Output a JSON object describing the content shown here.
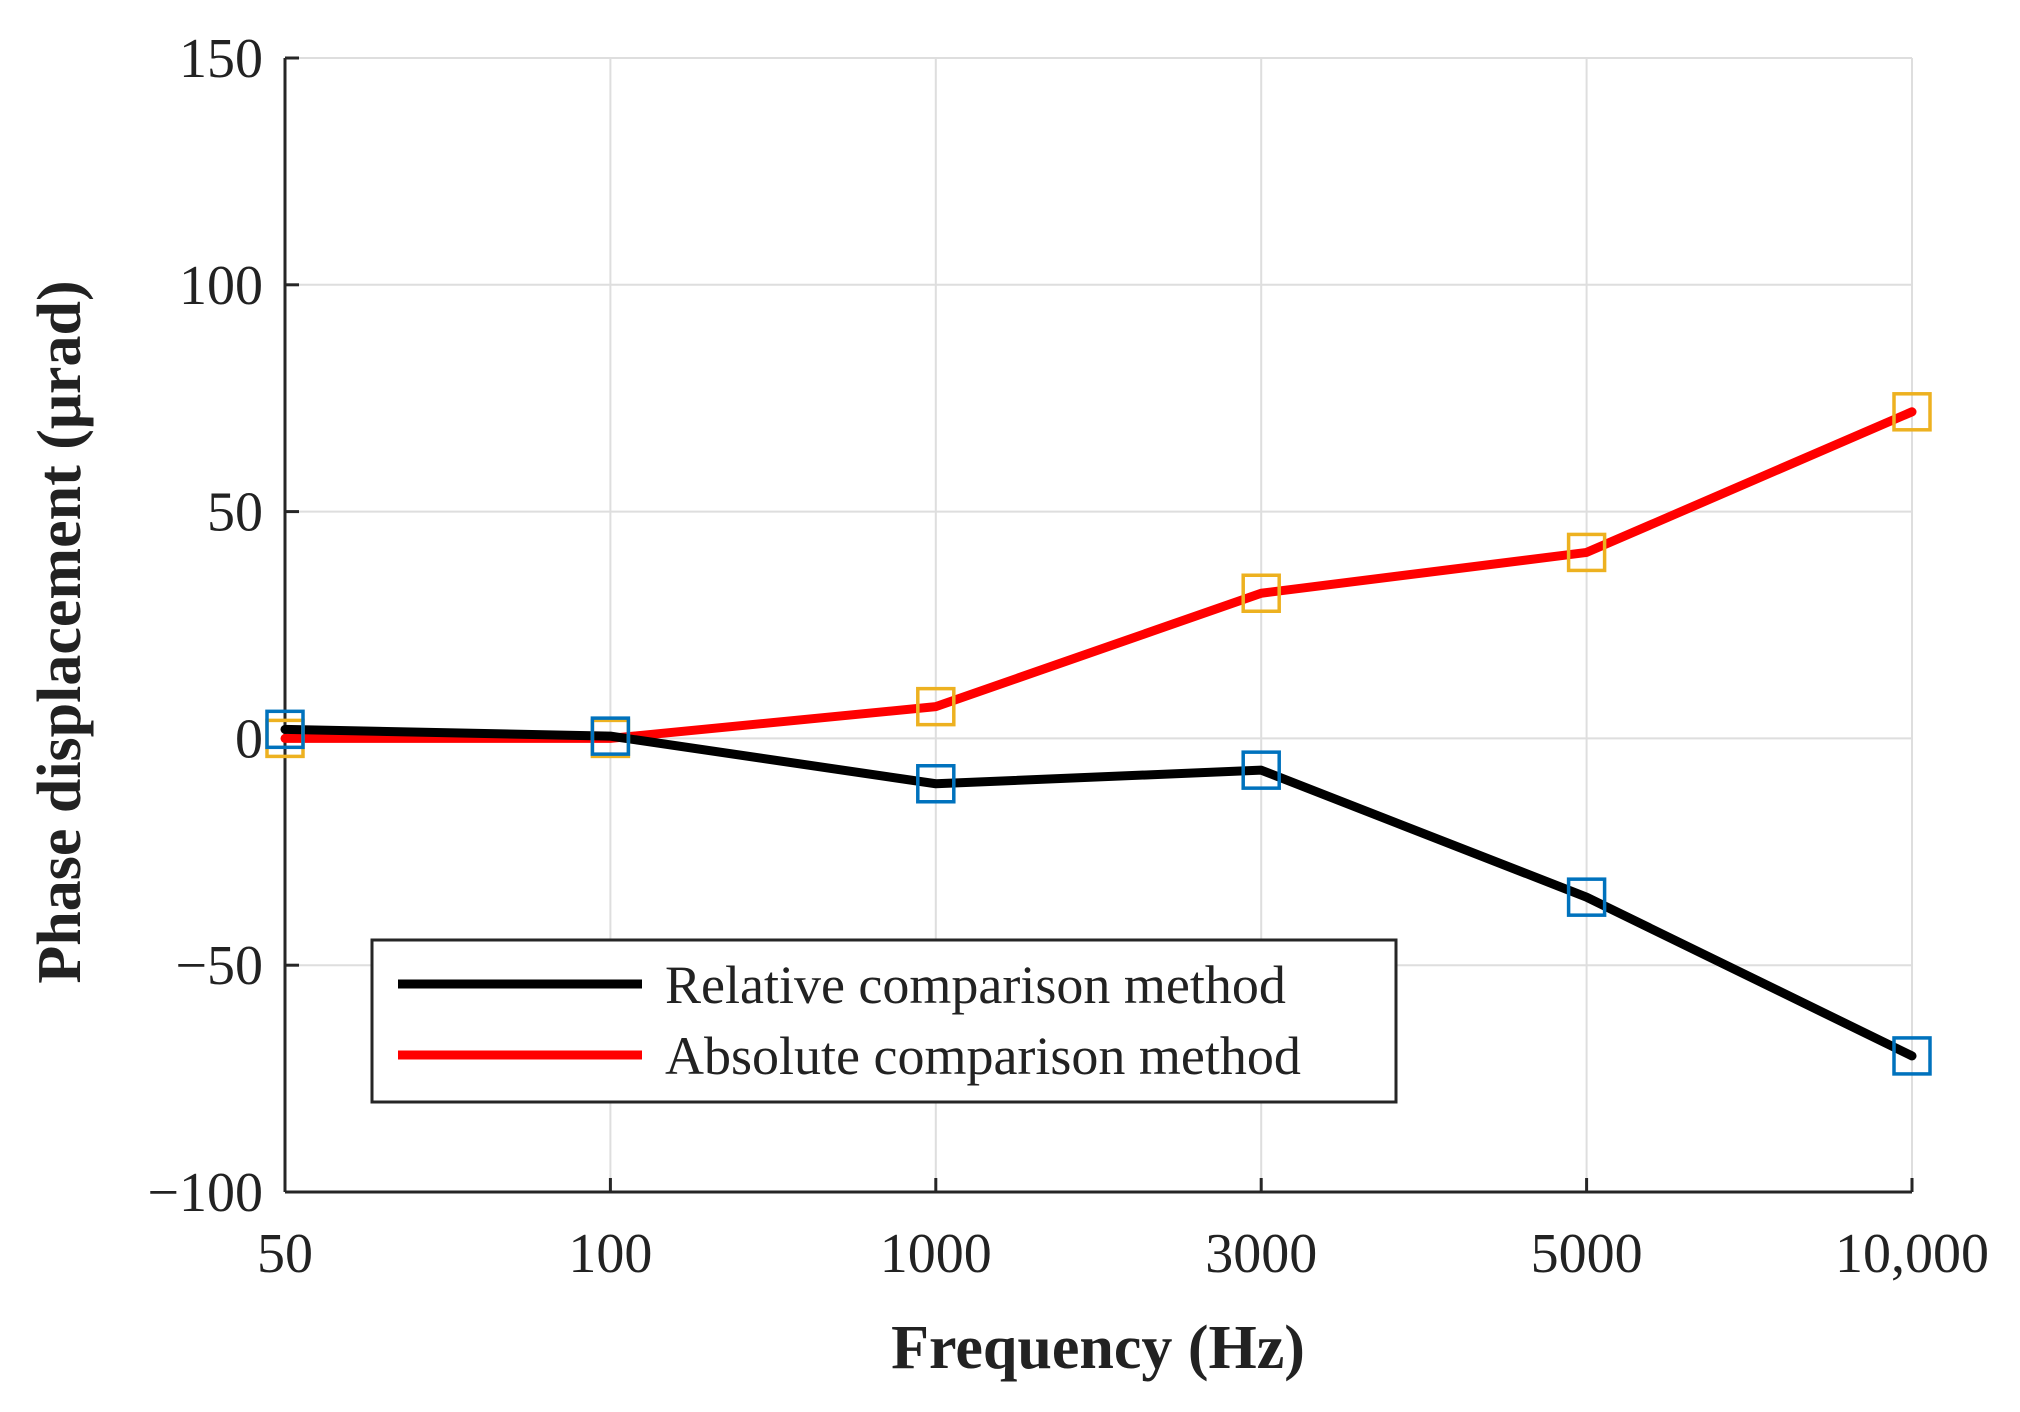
{
  "chart_data": {
    "type": "line",
    "title": "",
    "xlabel": "Frequency (Hz)",
    "ylabel": "Phase displacement (μrad)",
    "categories": [
      "50",
      "100",
      "1000",
      "3000",
      "5000",
      "10,000"
    ],
    "ylim": [
      -100,
      150
    ],
    "yticks": [
      -100,
      -50,
      0,
      50,
      100,
      150
    ],
    "ytick_labels": [
      "−100",
      "−50",
      "0",
      "50",
      "100",
      "150"
    ],
    "grid": true,
    "legend_position": "bottom-left",
    "series": [
      {
        "name": "Relative comparison method",
        "color": "#000000",
        "marker_color": "#0072BD",
        "values": [
          2,
          0.5,
          -10,
          -7,
          -35,
          -70
        ]
      },
      {
        "name": "Absolute comparison method",
        "color": "#FF0000",
        "marker_color": "#EDB120",
        "values": [
          0,
          0,
          7,
          32,
          41,
          72
        ]
      }
    ]
  }
}
